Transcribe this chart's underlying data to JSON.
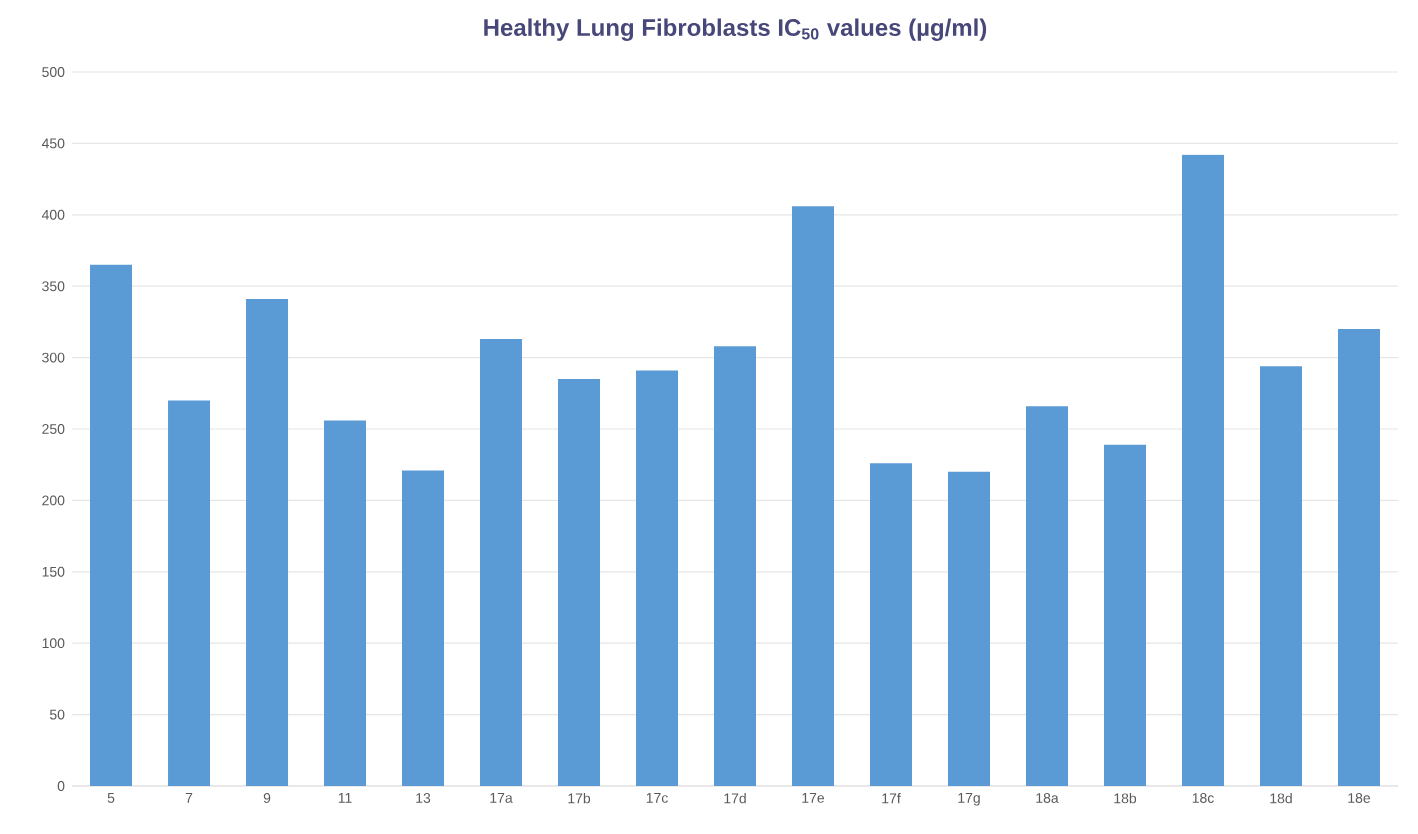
{
  "chart_data": {
    "type": "bar",
    "title": "Healthy Lung Fibroblasts IC$_{50}$ values (µg/ml)",
    "categories": [
      "5",
      "7",
      "9",
      "11",
      "13",
      "17a",
      "17b",
      "17c",
      "17d",
      "17e",
      "17f",
      "17g",
      "18a",
      "18b",
      "18c",
      "18d",
      "18e"
    ],
    "values": [
      365,
      270,
      341,
      256,
      221,
      313,
      285,
      291,
      308,
      406,
      226,
      220,
      266,
      239,
      442,
      294,
      320
    ],
    "color": "#5b9bd5",
    "ylim": [
      0,
      500
    ],
    "yticks": [
      0,
      50,
      100,
      150,
      200,
      250,
      300,
      350,
      400,
      450,
      500
    ],
    "grid": "y"
  }
}
